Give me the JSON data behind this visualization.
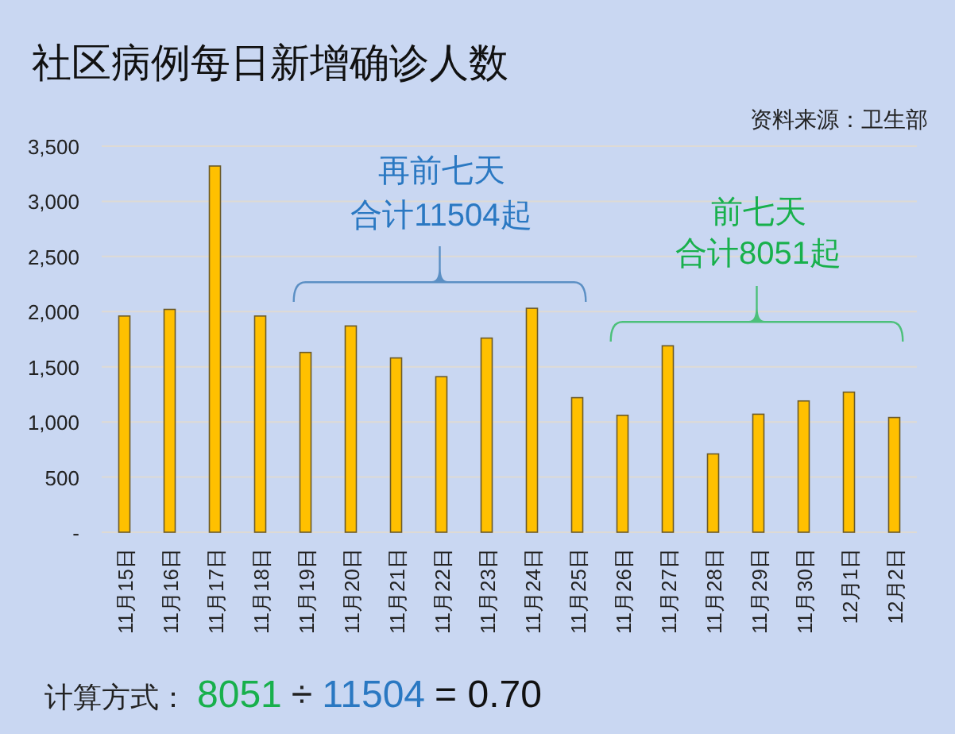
{
  "chart_data": {
    "type": "bar",
    "title": "社区病例每日新增确诊人数",
    "categories": [
      "11月15日",
      "11月16日",
      "11月17日",
      "11月18日",
      "11月19日",
      "11月20日",
      "11月21日",
      "11月22日",
      "11月23日",
      "11月24日",
      "11月25日",
      "11月26日",
      "11月27日",
      "11月28日",
      "11月29日",
      "11月30日",
      "12月1日",
      "12月2日"
    ],
    "values": [
      1960,
      2020,
      3320,
      1960,
      1630,
      1870,
      1580,
      1410,
      1760,
      2030,
      1220,
      1060,
      1690,
      710,
      1070,
      1190,
      1270,
      1040
    ],
    "color": "#ffc000",
    "ylim": [
      0,
      3500
    ],
    "yticks": [
      {
        "value": 0,
        "label": "-"
      },
      500,
      {
        "value": 1000,
        "label": "1,000"
      },
      {
        "value": 1500,
        "label": "1,500"
      },
      {
        "value": 2000,
        "label": "2,000"
      },
      {
        "value": 2500,
        "label": "2,500"
      },
      {
        "value": 3000,
        "label": "3,000"
      },
      {
        "value": 3500,
        "label": "3,500"
      }
    ],
    "grid": "y",
    "annotations": [
      "资料来源：卫生部",
      "再前七天",
      "合计11504起",
      "前七天",
      "合计8051起",
      "计算方式：",
      "8051",
      "÷",
      "11504",
      "= 0.70"
    ]
  }
}
